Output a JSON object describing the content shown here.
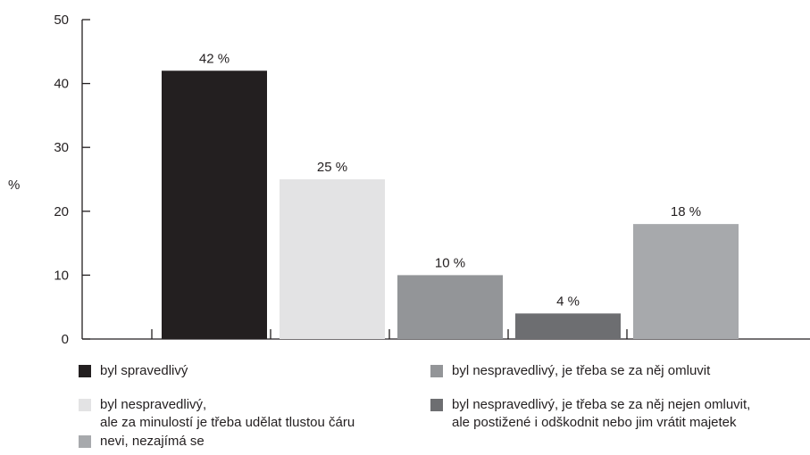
{
  "chart_data": {
    "type": "bar",
    "ylabel": "%",
    "ylim": [
      0,
      50
    ],
    "yticks": [
      "0",
      "10",
      "20",
      "30",
      "40",
      "50"
    ],
    "grid": false,
    "legend_position": "bottom",
    "categories": [
      "byl spravedlivý",
      "byl nespravedlivý, ale za minulostí je třeba udělat tlustou čáru",
      "byl nespravedlivý, je třeba se za něj omluvit",
      "byl nespravedlivý, je třeba se za něj nejen omluvit, ale postižené i odškodnit nebo jim vrátit majetek",
      "neví, nezajímá se"
    ],
    "values": [
      42,
      25,
      10,
      4,
      18
    ],
    "data_labels": [
      "42 %",
      "25 %",
      "10 %",
      "4 %",
      "18 %"
    ],
    "colors": [
      "#231f20",
      "#e3e3e4",
      "#939598",
      "#6d6e71",
      "#a7a9ac"
    ]
  },
  "legend": [
    {
      "lines": [
        "byl spravedlivý"
      ],
      "color": "#231f20"
    },
    {
      "lines": [
        "byl nespravedlivý,",
        "ale za minulostí je třeba udělat tlustou čáru"
      ],
      "color": "#e3e3e4"
    },
    {
      "lines": [
        "nevi, nezajímá se"
      ],
      "color": "#a7a9ac"
    },
    {
      "lines": [
        "byl nespravedlivý, je třeba se za něj omluvit"
      ],
      "color": "#939598"
    },
    {
      "lines": [
        "byl nespravedlivý, je třeba se za něj nejen omluvit,",
        "ale postižené i odškodnit nebo jim vrátit majetek"
      ],
      "color": "#6d6e71"
    }
  ]
}
